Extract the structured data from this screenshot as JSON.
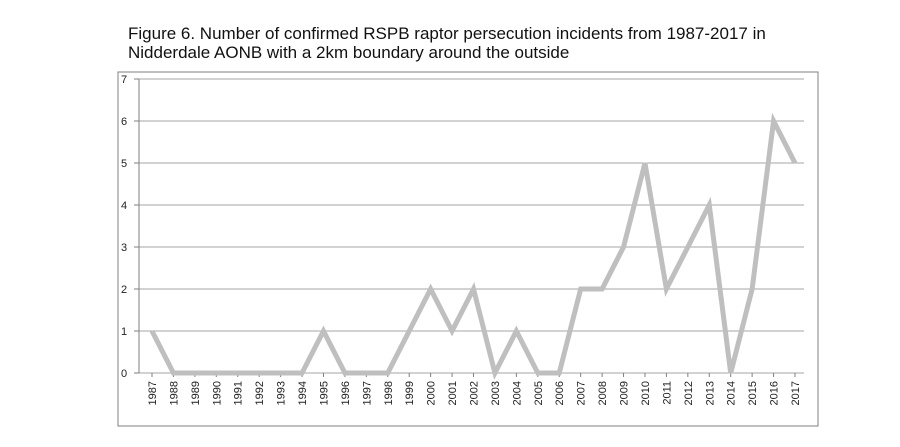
{
  "chart_data": {
    "type": "line",
    "title": "Figure 6. Number of confirmed RSPB raptor persecution incidents from 1987-2017 in Nidderdale AONB with a 2km boundary around the outside",
    "xlabel": "",
    "ylabel": "",
    "ylim": [
      0,
      7
    ],
    "yticks": [
      0,
      1,
      2,
      3,
      4,
      5,
      6,
      7
    ],
    "grid": true,
    "legend": "none",
    "line_color": "#bfbfbf",
    "grid_color": "#a6a6a6",
    "categories": [
      "1987",
      "1988",
      "1989",
      "1990",
      "1991",
      "1992",
      "1993",
      "1994",
      "1995",
      "1996",
      "1997",
      "1998",
      "1999",
      "2000",
      "2001",
      "2002",
      "2003",
      "2004",
      "2005",
      "2006",
      "2007",
      "2008",
      "2009",
      "2010",
      "2011",
      "2012",
      "2013",
      "2014",
      "2015",
      "2016",
      "2017"
    ],
    "series": [
      {
        "values": [
          1,
          0,
          0,
          0,
          0,
          0,
          0,
          0,
          1,
          0,
          0,
          0,
          1,
          2,
          1,
          2,
          0,
          1,
          0,
          0,
          2,
          2,
          3,
          5,
          2,
          3,
          4,
          0,
          2,
          6,
          5
        ]
      }
    ]
  }
}
